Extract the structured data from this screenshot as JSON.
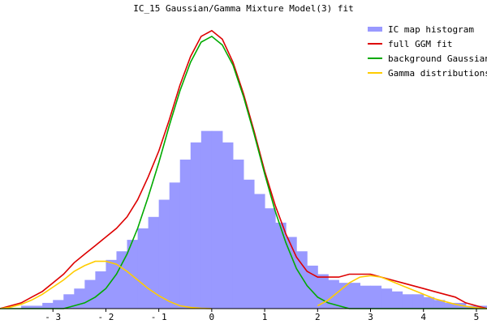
{
  "chart_data": {
    "type": "area",
    "title": "IC_15 Gaussian/Gamma Mixture Model(3) fit",
    "xlabel": "",
    "ylabel": "",
    "xlim": [
      -4,
      5.2
    ],
    "ylim": [
      0,
      1.0
    ],
    "x_ticks": [
      {
        "value": -3,
        "label": "- 3"
      },
      {
        "value": -2,
        "label": "- 2"
      },
      {
        "value": -1,
        "label": "- 1"
      },
      {
        "value": 0,
        "label": "0"
      },
      {
        "value": 1,
        "label": "1"
      },
      {
        "value": 2,
        "label": "2"
      },
      {
        "value": 3,
        "label": "3"
      },
      {
        "value": 4,
        "label": "4"
      },
      {
        "value": 5,
        "label": "5"
      }
    ],
    "legend_position": "top-right",
    "grid": false,
    "series": [
      {
        "name": "IC map histogram",
        "type": "histogram",
        "color": "#9999ff",
        "x": [
          -4.0,
          -3.8,
          -3.6,
          -3.4,
          -3.2,
          -3.0,
          -2.8,
          -2.6,
          -2.4,
          -2.2,
          -2.0,
          -1.8,
          -1.6,
          -1.4,
          -1.2,
          -1.0,
          -0.8,
          -0.6,
          -0.4,
          -0.2,
          0.0,
          0.2,
          0.4,
          0.6,
          0.8,
          1.0,
          1.2,
          1.4,
          1.6,
          1.8,
          2.0,
          2.2,
          2.4,
          2.6,
          2.8,
          3.0,
          3.2,
          3.4,
          3.6,
          3.8,
          4.0,
          4.2,
          4.4,
          4.6,
          4.8,
          5.0,
          5.2
        ],
        "values": [
          0.0,
          0.0,
          0.01,
          0.01,
          0.02,
          0.03,
          0.05,
          0.07,
          0.1,
          0.13,
          0.17,
          0.2,
          0.24,
          0.28,
          0.32,
          0.38,
          0.44,
          0.52,
          0.58,
          0.62,
          0.62,
          0.58,
          0.52,
          0.45,
          0.4,
          0.35,
          0.3,
          0.25,
          0.2,
          0.15,
          0.12,
          0.1,
          0.09,
          0.09,
          0.08,
          0.08,
          0.07,
          0.06,
          0.05,
          0.05,
          0.04,
          0.03,
          0.02,
          0.02,
          0.01,
          0.01,
          0.0
        ]
      },
      {
        "name": "full GGM fit",
        "type": "line",
        "color": "#dd0000",
        "x": [
          -4.0,
          -3.8,
          -3.6,
          -3.4,
          -3.2,
          -3.0,
          -2.8,
          -2.6,
          -2.4,
          -2.2,
          -2.0,
          -1.8,
          -1.6,
          -1.4,
          -1.2,
          -1.0,
          -0.8,
          -0.6,
          -0.4,
          -0.2,
          0.0,
          0.2,
          0.4,
          0.6,
          0.8,
          1.0,
          1.2,
          1.4,
          1.6,
          1.8,
          2.0,
          2.2,
          2.4,
          2.6,
          2.8,
          3.0,
          3.2,
          3.4,
          3.6,
          3.8,
          4.0,
          4.2,
          4.4,
          4.6,
          4.8,
          5.0,
          5.2
        ],
        "values": [
          0.0,
          0.01,
          0.02,
          0.04,
          0.06,
          0.09,
          0.12,
          0.16,
          0.19,
          0.22,
          0.25,
          0.28,
          0.32,
          0.38,
          0.46,
          0.55,
          0.66,
          0.78,
          0.88,
          0.95,
          0.97,
          0.94,
          0.86,
          0.75,
          0.62,
          0.48,
          0.36,
          0.26,
          0.18,
          0.13,
          0.11,
          0.11,
          0.11,
          0.12,
          0.12,
          0.12,
          0.11,
          0.1,
          0.09,
          0.08,
          0.07,
          0.06,
          0.05,
          0.04,
          0.02,
          0.01,
          0.0
        ]
      },
      {
        "name": "background Gaussian",
        "type": "line",
        "color": "#00aa00",
        "x": [
          -4.0,
          -3.8,
          -3.6,
          -3.4,
          -3.2,
          -3.0,
          -2.8,
          -2.6,
          -2.4,
          -2.2,
          -2.0,
          -1.8,
          -1.6,
          -1.4,
          -1.2,
          -1.0,
          -0.8,
          -0.6,
          -0.4,
          -0.2,
          0.0,
          0.2,
          0.4,
          0.6,
          0.8,
          1.0,
          1.2,
          1.4,
          1.6,
          1.8,
          2.0,
          2.2,
          2.4,
          2.6,
          2.8,
          3.0,
          3.2,
          3.4,
          3.6,
          3.8,
          4.0,
          4.2,
          4.4,
          4.6,
          4.8,
          5.0,
          5.2
        ],
        "values": [
          0.0,
          0.0,
          0.0,
          0.0,
          0.0,
          0.0,
          0.0,
          0.01,
          0.02,
          0.04,
          0.07,
          0.12,
          0.19,
          0.28,
          0.39,
          0.51,
          0.64,
          0.76,
          0.86,
          0.93,
          0.95,
          0.92,
          0.85,
          0.74,
          0.61,
          0.47,
          0.34,
          0.23,
          0.14,
          0.08,
          0.04,
          0.02,
          0.01,
          0.0,
          0.0,
          0.0,
          0.0,
          0.0,
          0.0,
          0.0,
          0.0,
          0.0,
          0.0,
          0.0,
          0.0,
          0.0,
          0.0
        ]
      },
      {
        "name": "Gamma distributions",
        "type": "line",
        "color": "#ffcc00",
        "segments": [
          {
            "x": [
              -4.0,
              -3.8,
              -3.6,
              -3.4,
              -3.2,
              -3.0,
              -2.8,
              -2.6,
              -2.4,
              -2.2,
              -2.0,
              -1.8,
              -1.6,
              -1.4,
              -1.2,
              -1.0,
              -0.8,
              -0.6,
              -0.4,
              -0.2,
              0.0
            ],
            "values": [
              0.0,
              0.005,
              0.015,
              0.03,
              0.05,
              0.075,
              0.1,
              0.13,
              0.15,
              0.165,
              0.165,
              0.155,
              0.13,
              0.1,
              0.07,
              0.045,
              0.025,
              0.01,
              0.004,
              0.001,
              0.0
            ]
          },
          {
            "x": [
              2.0,
              2.2,
              2.4,
              2.6,
              2.8,
              3.0,
              3.2,
              3.4,
              3.6,
              3.8,
              4.0,
              4.2,
              4.4,
              4.6,
              4.8,
              5.0,
              5.2
            ],
            "values": [
              0.01,
              0.03,
              0.06,
              0.09,
              0.11,
              0.115,
              0.11,
              0.095,
              0.08,
              0.065,
              0.05,
              0.035,
              0.025,
              0.015,
              0.008,
              0.003,
              0.0
            ]
          }
        ]
      }
    ]
  }
}
